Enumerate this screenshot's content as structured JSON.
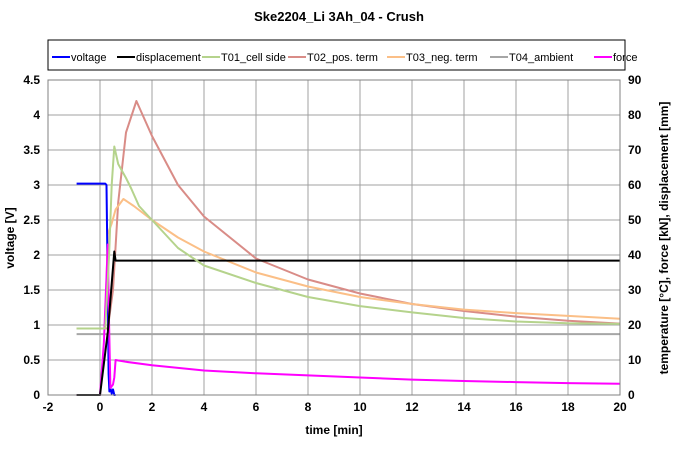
{
  "chart_data": {
    "type": "line",
    "title": "Ske2204_Li 3Ah_04 - Crush",
    "xlabel": "time [min]",
    "ylabel": "voltage [V]",
    "y2label": "temperature [°C], force [kN], displacement [mm]",
    "xlim": [
      -2,
      20
    ],
    "ylim": [
      0,
      4.5
    ],
    "y2lim": [
      0,
      90
    ],
    "xticks": [
      "-2",
      "0",
      "2",
      "4",
      "6",
      "8",
      "10",
      "12",
      "14",
      "16",
      "18",
      "20"
    ],
    "yticks": [
      "0",
      "0.5",
      "1",
      "1.5",
      "2",
      "2.5",
      "3",
      "3.5",
      "4",
      "4.5"
    ],
    "y2ticks": [
      "0",
      "10",
      "20",
      "30",
      "40",
      "50",
      "60",
      "70",
      "80",
      "90"
    ],
    "grid": true,
    "legend_position": "top",
    "series": [
      {
        "name": "voltage",
        "axis": "left",
        "color": "#0000ff",
        "x": [
          -0.9,
          0.2,
          0.25,
          0.3,
          0.33,
          0.36,
          0.4,
          0.45,
          0.5,
          0.55,
          0.6
        ],
        "y": [
          3.02,
          3.02,
          3.0,
          1.5,
          0.3,
          0.05,
          0.1,
          0.02,
          0.08,
          0.0,
          0.0
        ]
      },
      {
        "name": "displacement",
        "axis": "right",
        "color": "#000000",
        "x": [
          -0.9,
          0.0,
          0.3,
          0.55,
          0.6,
          20
        ],
        "y": [
          0,
          0,
          18,
          41,
          38.4,
          38.4
        ]
      },
      {
        "name": "T01_cell side",
        "axis": "right",
        "color": "#b5d38c",
        "x": [
          -0.9,
          0.2,
          0.35,
          0.45,
          0.55,
          0.7,
          1.0,
          1.2,
          1.5,
          2,
          3,
          4,
          6,
          8,
          10,
          12,
          14,
          16,
          18,
          20
        ],
        "y": [
          19,
          19,
          40,
          60,
          71,
          66,
          62,
          59,
          54,
          50,
          42,
          37,
          32,
          28,
          25.4,
          23.6,
          22,
          21,
          20.5,
          20.3
        ]
      },
      {
        "name": "T02_pos. term",
        "axis": "right",
        "color": "#d98c87",
        "x": [
          -0.9,
          0.3,
          0.5,
          0.7,
          1.0,
          1.4,
          2,
          3,
          4,
          6,
          8,
          10,
          12,
          14,
          16,
          18,
          20
        ],
        "y": [
          19,
          19,
          30,
          55,
          75,
          84,
          74,
          60,
          51,
          39,
          33,
          29,
          26,
          24,
          22.4,
          21.2,
          20.4
        ]
      },
      {
        "name": "T03_neg. term",
        "axis": "right",
        "color": "#fbbf87",
        "x": [
          -0.9,
          0.2,
          0.3,
          0.45,
          0.6,
          0.9,
          1.3,
          2,
          3,
          4,
          6,
          8,
          10,
          12,
          14,
          16,
          18,
          20
        ],
        "y": [
          19,
          19,
          46,
          49,
          53,
          56,
          54,
          50,
          45,
          41,
          35,
          31,
          28,
          26,
          24.4,
          23.4,
          22.6,
          21.8
        ]
      },
      {
        "name": "T04_ambient",
        "axis": "right",
        "color": "#a6a6a6",
        "x": [
          -0.9,
          20
        ],
        "y": [
          17.4,
          17.4
        ]
      },
      {
        "name": "force",
        "axis": "right",
        "color": "#ff00ff",
        "x": [
          -0.9,
          0.0,
          0.15,
          0.3,
          0.35,
          0.4,
          0.5,
          0.55,
          0.6,
          1,
          2,
          4,
          6,
          8,
          10,
          12,
          14,
          16,
          18,
          20
        ],
        "y": [
          0,
          0,
          15,
          43,
          20,
          2,
          3,
          5,
          10,
          9.5,
          8.5,
          7,
          6.2,
          5.6,
          5,
          4.4,
          4,
          3.7,
          3.4,
          3.2
        ]
      }
    ]
  }
}
